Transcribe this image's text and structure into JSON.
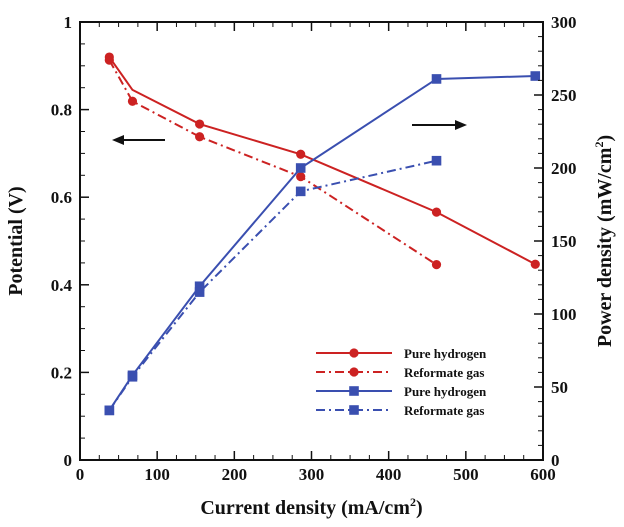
{
  "chart_data": {
    "type": "line",
    "xlabel": "Current density (mA/cm",
    "xlabel_sup": "2",
    "xlabel_end": ")",
    "ylabel_left": "Potential (V)",
    "ylabel_right": "Power density (mW/cm",
    "ylabel_right_sup": "2",
    "ylabel_right_end": ")",
    "xlim": [
      0,
      600
    ],
    "ylim_left": [
      0,
      1
    ],
    "ylim_right": [
      0,
      300
    ],
    "x_ticks": [
      "0",
      "100",
      "200",
      "300",
      "400",
      "500",
      "600"
    ],
    "y_left_ticks": [
      "0",
      "0.2",
      "0.4",
      "0.6",
      "0.8",
      "1"
    ],
    "y_right_ticks": [
      "0",
      "50",
      "100",
      "150",
      "200",
      "250",
      "300"
    ],
    "grid": false,
    "legend_position": "bottom-right",
    "colors": {
      "red": "#cc2222",
      "blue": "#3a4fb0"
    },
    "series": [
      {
        "name": "Pure hydrogen",
        "axis": "left",
        "color": "#cc2222",
        "dash": "solid",
        "marker": "circle",
        "curve": [
          [
            38,
            0.92
          ],
          [
            68,
            0.845
          ],
          [
            155,
            0.767
          ],
          [
            286,
            0.698
          ],
          [
            462,
            0.566
          ],
          [
            590,
            0.447
          ]
        ],
        "markers": [
          [
            38,
            0.92
          ],
          [
            155,
            0.767
          ],
          [
            286,
            0.698
          ],
          [
            462,
            0.566
          ],
          [
            590,
            0.447
          ]
        ]
      },
      {
        "name": "Reformate gas",
        "axis": "left",
        "color": "#cc2222",
        "dash": "dashdot",
        "marker": "circle",
        "curve": [
          [
            38,
            0.913
          ],
          [
            68,
            0.819
          ],
          [
            155,
            0.738
          ],
          [
            286,
            0.647
          ],
          [
            462,
            0.446
          ]
        ],
        "markers": [
          [
            38,
            0.913
          ],
          [
            68,
            0.819
          ],
          [
            155,
            0.738
          ],
          [
            286,
            0.647
          ],
          [
            462,
            0.446
          ]
        ]
      },
      {
        "name": "Pure hydrogen",
        "axis": "right",
        "color": "#3a4fb0",
        "dash": "solid",
        "marker": "square",
        "curve": [
          [
            38,
            34
          ],
          [
            68,
            58
          ],
          [
            155,
            119
          ],
          [
            286,
            200
          ],
          [
            462,
            261
          ],
          [
            590,
            263
          ]
        ],
        "markers": [
          [
            38,
            34
          ],
          [
            68,
            58
          ],
          [
            155,
            119
          ],
          [
            286,
            200
          ],
          [
            462,
            261
          ],
          [
            590,
            263
          ]
        ]
      },
      {
        "name": "Reformate gas",
        "axis": "right",
        "color": "#3a4fb0",
        "dash": "dashdot",
        "marker": "square",
        "curve": [
          [
            38,
            34
          ],
          [
            68,
            57
          ],
          [
            155,
            115
          ],
          [
            286,
            184
          ],
          [
            462,
            205
          ]
        ],
        "markers": [
          [
            38,
            34
          ],
          [
            68,
            57
          ],
          [
            155,
            115
          ],
          [
            286,
            184
          ],
          [
            462,
            205
          ]
        ]
      }
    ]
  }
}
